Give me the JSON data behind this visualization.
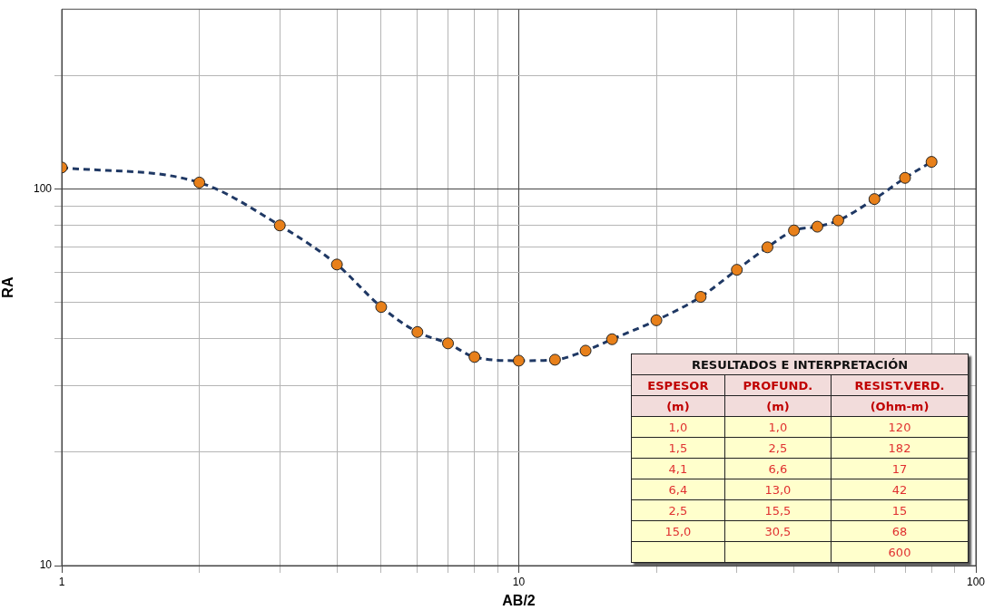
{
  "chart_data": [
    {
      "type": "line",
      "xlabel": "AB/2",
      "ylabel": "RA",
      "x": [
        1,
        2,
        3,
        4,
        5,
        6,
        7,
        8,
        10,
        12,
        14,
        16,
        20,
        25,
        30,
        35,
        40,
        45,
        50,
        60,
        70,
        80
      ],
      "series": [
        {
          "color": "#1f3864",
          "values": [
            114,
            104,
            80,
            63,
            48.6,
            41.7,
            38.9,
            35.8,
            35.0,
            35.2,
            37.2,
            39.9,
            44.8,
            51.7,
            61,
            70,
            77.6,
            79.4,
            82.5,
            94,
            107,
            118
          ]
        }
      ],
      "log": "xy",
      "xlim": [
        1,
        100
      ],
      "ylim": [
        10,
        300
      ],
      "xticks": [
        1,
        {
          "value": 2,
          "label": null
        },
        {
          "value": 3,
          "label": null
        },
        {
          "value": 4,
          "label": null
        },
        {
          "value": 5,
          "label": null
        },
        {
          "value": 6,
          "label": null
        },
        {
          "value": 7,
          "label": null
        },
        {
          "value": 8,
          "label": null
        },
        {
          "value": 9,
          "label": null
        },
        10,
        {
          "value": 20,
          "label": null
        },
        {
          "value": 30,
          "label": null
        },
        {
          "value": 40,
          "label": null
        },
        {
          "value": 50,
          "label": null
        },
        {
          "value": 60,
          "label": null
        },
        {
          "value": 70,
          "label": null
        },
        {
          "value": 80,
          "label": null
        },
        {
          "value": 90,
          "label": null
        },
        100
      ],
      "yticks": [
        10,
        {
          "value": 20,
          "label": null
        },
        {
          "value": 30,
          "label": null
        },
        {
          "value": 40,
          "label": null
        },
        {
          "value": 50,
          "label": null
        },
        {
          "value": 60,
          "label": null
        },
        {
          "value": 70,
          "label": null
        },
        {
          "value": 80,
          "label": null
        },
        {
          "value": 90,
          "label": null
        },
        100,
        {
          "value": 200,
          "label": null
        }
      ],
      "grid": true,
      "legend": false,
      "marker": "circle",
      "line_style": "dashed"
    },
    {
      "type": "other",
      "title": "RESULTADOS E INTERPRETACIÓN",
      "categories": [
        "ESPESOR",
        "PROFUND.",
        "RESIST.VERD."
      ],
      "cell_labels": [
        [
          "(m)",
          "(m)",
          "(Ohm-m)"
        ],
        [
          "1,0",
          "1,0",
          "120"
        ],
        [
          "1,5",
          "2,5",
          "182"
        ],
        [
          "4,1",
          "6,6",
          "17"
        ],
        [
          "6,4",
          "13,0",
          "42"
        ],
        [
          "2,5",
          "15,5",
          "15"
        ],
        [
          "15,0",
          "30,5",
          "68"
        ],
        [
          null,
          null,
          "600"
        ]
      ]
    }
  ]
}
